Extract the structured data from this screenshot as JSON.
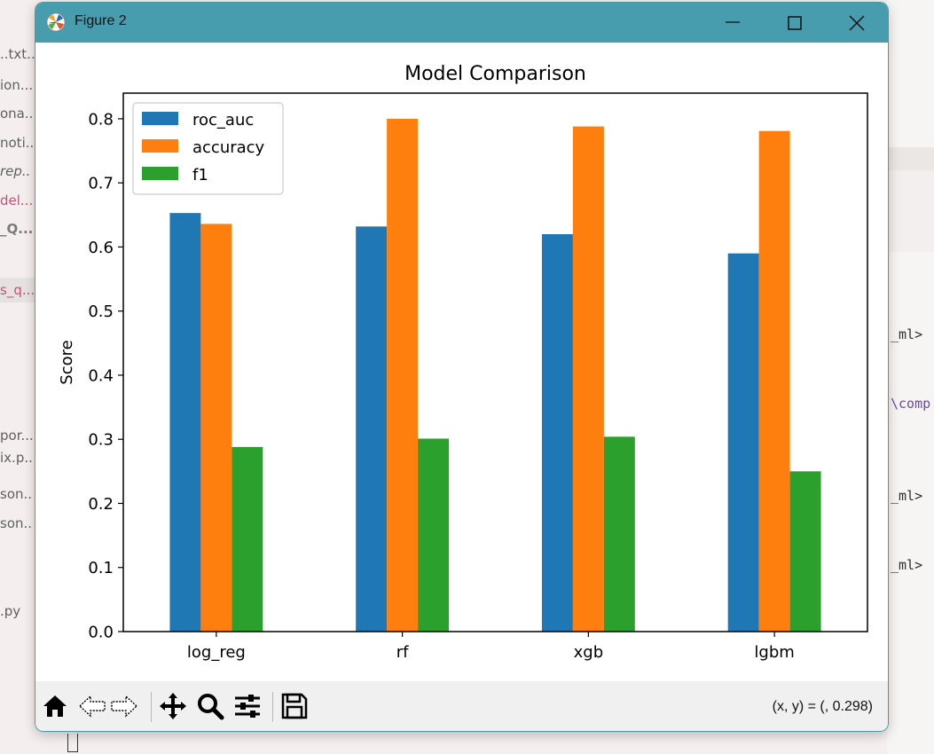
{
  "background": {
    "left_items": [
      {
        "text": "..txt..",
        "style": "normal"
      },
      {
        "text": "ion...",
        "style": "normal"
      },
      {
        "text": "ona..",
        "style": "normal"
      },
      {
        "text": "noti...",
        "style": "normal"
      },
      {
        "text": "rep..",
        "style": "ital"
      },
      {
        "text": "del...",
        "style": "pink"
      },
      {
        "text": "_Q...",
        "style": "bold"
      },
      {
        "text": "s_q...",
        "style": "pink"
      },
      {
        "text": "por...",
        "style": "normal"
      },
      {
        "text": "ix.p..",
        "style": "normal"
      },
      {
        "text": "son..",
        "style": "normal"
      },
      {
        "text": "son..",
        "style": "normal"
      },
      {
        "text": ".py",
        "style": "normal"
      }
    ],
    "right_lines": [
      "_ml>",
      "\\comp",
      "_ml>",
      "_ml>"
    ]
  },
  "window": {
    "title": "Figure 2",
    "buttons": {
      "minimize": "minimize",
      "maximize": "maximize",
      "close": "close"
    }
  },
  "chart_data": {
    "type": "bar",
    "title": "Model Comparison",
    "xlabel": "",
    "ylabel": "Score",
    "categories": [
      "log_reg",
      "rf",
      "xgb",
      "lgbm"
    ],
    "series": [
      {
        "name": "roc_auc",
        "color": "#1f77b4",
        "values": [
          0.653,
          0.632,
          0.62,
          0.59
        ]
      },
      {
        "name": "accuracy",
        "color": "#ff7f0e",
        "values": [
          0.636,
          0.8,
          0.788,
          0.781
        ]
      },
      {
        "name": "f1",
        "color": "#2ca02c",
        "values": [
          0.288,
          0.301,
          0.304,
          0.25
        ]
      }
    ],
    "ylim": [
      0,
      0.84
    ],
    "yticks": [
      0.0,
      0.1,
      0.2,
      0.3,
      0.4,
      0.5,
      0.6,
      0.7,
      0.8
    ],
    "ytick_labels": [
      "0.0",
      "0.1",
      "0.2",
      "0.3",
      "0.4",
      "0.5",
      "0.6",
      "0.7",
      "0.8"
    ],
    "grid": false,
    "legend": "top-left"
  },
  "toolbar": {
    "icons": [
      "home-icon",
      "back-icon",
      "forward-icon",
      "pan-icon",
      "zoom-icon",
      "configure-subplots-icon",
      "save-icon"
    ],
    "coords": "(x, y) = (, 0.298)"
  }
}
